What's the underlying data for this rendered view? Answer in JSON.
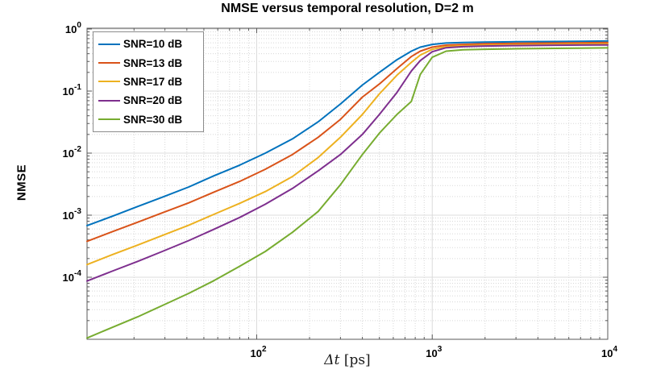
{
  "figure": {
    "title": "NMSE versus temporal resolution, D=2 m",
    "ylabel": "NMSE",
    "xlabel": {
      "symbol": "Δt",
      "unit": "[ps]"
    }
  },
  "legend": {
    "items": [
      "SNR=10 dB",
      "SNR=13 dB",
      "SNR=17 dB",
      "SNR=20 dB",
      "SNR=30 dB"
    ]
  },
  "chart_data": {
    "type": "line",
    "title": "NMSE versus temporal resolution, D=2 m",
    "xlabel": "Δt [ps]",
    "ylabel": "NMSE",
    "xscale": "log",
    "yscale": "log",
    "xlim": [
      10.8,
      10000
    ],
    "ylim": [
      1e-05,
      1
    ],
    "xticks_exponents": [
      2,
      3,
      4
    ],
    "yticks_exponents": [
      0,
      -1,
      -2,
      -3,
      -4
    ],
    "grid": "on",
    "minor_grid": "on",
    "legend_position": "northwest",
    "colors": {
      "axis": "#5a5a5a",
      "major_grid": "#dcdcdc",
      "minor_grid": "#d8d8d8",
      "background": "#ffffff"
    },
    "series": [
      {
        "name": "SNR=10 dB",
        "color": "#0072BD",
        "points": [
          [
            10.8,
            0.00068
          ],
          [
            15,
            0.00096
          ],
          [
            21,
            0.00138
          ],
          [
            29,
            0.00195
          ],
          [
            41,
            0.00285
          ],
          [
            57,
            0.0043
          ],
          [
            80,
            0.0064
          ],
          [
            112,
            0.01
          ],
          [
            160,
            0.017
          ],
          [
            224,
            0.032
          ],
          [
            300,
            0.062
          ],
          [
            400,
            0.125
          ],
          [
            500,
            0.2
          ],
          [
            630,
            0.32
          ],
          [
            760,
            0.44
          ],
          [
            855,
            0.51
          ],
          [
            1000,
            0.565
          ],
          [
            1200,
            0.595
          ],
          [
            1500,
            0.605
          ],
          [
            2000,
            0.615
          ],
          [
            3000,
            0.623
          ],
          [
            5000,
            0.63
          ],
          [
            7000,
            0.635
          ],
          [
            10000,
            0.64
          ]
        ]
      },
      {
        "name": "SNR=13 dB",
        "color": "#D95319",
        "points": [
          [
            10.8,
            0.00038
          ],
          [
            15,
            0.00054
          ],
          [
            21,
            0.00077
          ],
          [
            29,
            0.00109
          ],
          [
            41,
            0.00158
          ],
          [
            57,
            0.00235
          ],
          [
            80,
            0.0035
          ],
          [
            112,
            0.0055
          ],
          [
            160,
            0.0095
          ],
          [
            224,
            0.018
          ],
          [
            300,
            0.035
          ],
          [
            400,
            0.08
          ],
          [
            500,
            0.13
          ],
          [
            630,
            0.23
          ],
          [
            760,
            0.36
          ],
          [
            855,
            0.44
          ],
          [
            1000,
            0.51
          ],
          [
            1200,
            0.55
          ],
          [
            1500,
            0.565
          ],
          [
            2000,
            0.578
          ],
          [
            3000,
            0.588
          ],
          [
            5000,
            0.595
          ],
          [
            7000,
            0.6
          ],
          [
            10000,
            0.605
          ]
        ]
      },
      {
        "name": "SNR=17 dB",
        "color": "#EDB120",
        "points": [
          [
            10.8,
            0.00016
          ],
          [
            15,
            0.00023
          ],
          [
            21,
            0.00033
          ],
          [
            29,
            0.00047
          ],
          [
            41,
            0.00069
          ],
          [
            57,
            0.00103
          ],
          [
            80,
            0.00155
          ],
          [
            112,
            0.0024
          ],
          [
            160,
            0.0042
          ],
          [
            224,
            0.0085
          ],
          [
            300,
            0.018
          ],
          [
            400,
            0.042
          ],
          [
            500,
            0.09
          ],
          [
            630,
            0.18
          ],
          [
            760,
            0.29
          ],
          [
            855,
            0.38
          ],
          [
            1000,
            0.47
          ],
          [
            1200,
            0.52
          ],
          [
            1500,
            0.538
          ],
          [
            2000,
            0.55
          ],
          [
            3000,
            0.558
          ],
          [
            5000,
            0.565
          ],
          [
            7000,
            0.57
          ],
          [
            10000,
            0.575
          ]
        ]
      },
      {
        "name": "SNR=20 dB",
        "color": "#7E2F8E",
        "points": [
          [
            10.8,
            8.7e-05
          ],
          [
            15,
            0.000125
          ],
          [
            21,
            0.00018
          ],
          [
            29,
            0.00026
          ],
          [
            41,
            0.00039
          ],
          [
            57,
            0.00059
          ],
          [
            80,
            0.00092
          ],
          [
            112,
            0.0015
          ],
          [
            160,
            0.0027
          ],
          [
            224,
            0.0052
          ],
          [
            300,
            0.0095
          ],
          [
            400,
            0.02
          ],
          [
            500,
            0.042
          ],
          [
            630,
            0.095
          ],
          [
            760,
            0.21
          ],
          [
            855,
            0.31
          ],
          [
            1000,
            0.43
          ],
          [
            1200,
            0.5
          ],
          [
            1500,
            0.52
          ],
          [
            2000,
            0.532
          ],
          [
            3000,
            0.54
          ],
          [
            5000,
            0.548
          ],
          [
            7000,
            0.552
          ],
          [
            10000,
            0.555
          ]
        ]
      },
      {
        "name": "SNR=30 dB",
        "color": "#77AC30",
        "points": [
          [
            10.8,
            1.05e-05
          ],
          [
            15,
            1.55e-05
          ],
          [
            21,
            2.3e-05
          ],
          [
            29,
            3.5e-05
          ],
          [
            41,
            5.5e-05
          ],
          [
            57,
            8.8e-05
          ],
          [
            80,
            0.00015
          ],
          [
            112,
            0.00026
          ],
          [
            160,
            0.00053
          ],
          [
            224,
            0.00115
          ],
          [
            300,
            0.0031
          ],
          [
            400,
            0.0095
          ],
          [
            500,
            0.021
          ],
          [
            630,
            0.042
          ],
          [
            760,
            0.068
          ],
          [
            855,
            0.185
          ],
          [
            1000,
            0.35
          ],
          [
            1200,
            0.44
          ],
          [
            1500,
            0.462
          ],
          [
            2000,
            0.472
          ],
          [
            3000,
            0.48
          ],
          [
            5000,
            0.488
          ],
          [
            7000,
            0.492
          ],
          [
            10000,
            0.497
          ]
        ]
      }
    ]
  }
}
